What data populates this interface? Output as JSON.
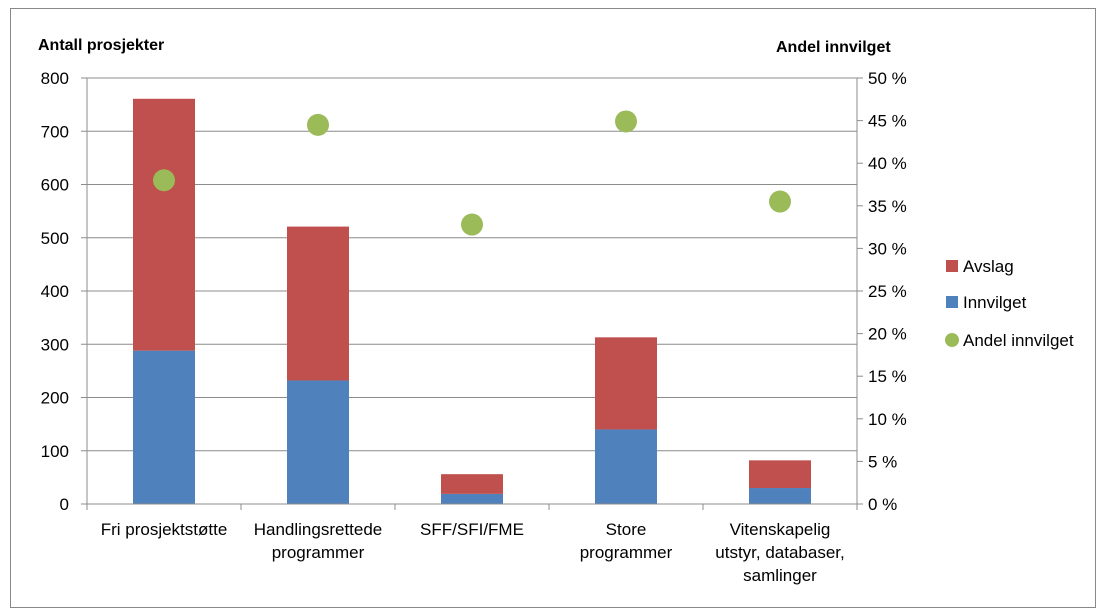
{
  "chart_data": {
    "type": "bar",
    "stacked": true,
    "categories": [
      [
        "Fri prosjektstøtte"
      ],
      [
        "Handlingsrettede",
        "programmer"
      ],
      [
        "SFF/SFI/FME"
      ],
      [
        "Store",
        "programmer"
      ],
      [
        "Vitenskapelig",
        "utstyr, databaser,",
        "samlinger"
      ]
    ],
    "series": [
      {
        "name": "Innvilget",
        "color": "#4F81BD",
        "values": [
          288,
          232,
          19,
          140,
          30
        ]
      },
      {
        "name": "Avslag",
        "color": "#C0504D",
        "values": [
          473,
          289,
          37,
          173,
          52
        ]
      }
    ],
    "secondary_series": {
      "name": "Andel innvilget",
      "type": "scatter",
      "color": "#9BBB59",
      "values": [
        0.38,
        0.445,
        0.328,
        0.449,
        0.355
      ]
    },
    "ylabel": "Antall prosjekter",
    "y2label": "Andel innvilget",
    "ylim": [
      0,
      800
    ],
    "yticks": [
      "0",
      "100",
      "200",
      "300",
      "400",
      "500",
      "600",
      "700",
      "800"
    ],
    "y2lim": [
      0,
      0.5
    ],
    "y2ticks": [
      "0 %",
      "5 %",
      "10 %",
      "15 %",
      "20 %",
      "25 %",
      "30 %",
      "35 %",
      "40 %",
      "45 %",
      "50 %"
    ],
    "grid": true,
    "legend": {
      "position": "right",
      "entries": [
        {
          "label": "Avslag",
          "marker": "square",
          "color": "#C0504D"
        },
        {
          "label": "Innvilget",
          "marker": "square",
          "color": "#4F81BD"
        },
        {
          "label": "Andel innvilget",
          "marker": "circle",
          "color": "#9BBB59"
        }
      ]
    }
  }
}
